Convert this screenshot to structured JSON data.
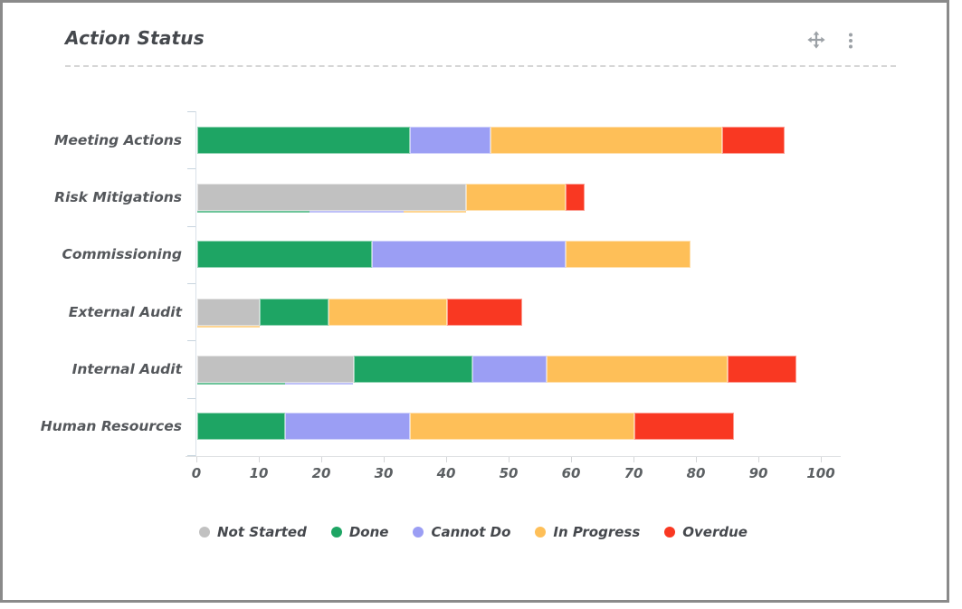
{
  "card": {
    "title": "Action Status",
    "header_icons": [
      {
        "name": "move-icon"
      },
      {
        "name": "kebab-menu-icon"
      }
    ]
  },
  "colors": {
    "not_started": "#C1C1C1",
    "done": "#1EA564",
    "cannot_do": "#9B9EF4",
    "in_progress": "#FEBF58",
    "overdue": "#F93822",
    "icon_gray": "#9CA1A6"
  },
  "chart_data": {
    "type": "bar",
    "orientation": "horizontal",
    "stacked": true,
    "title": "Action Status",
    "categories": [
      "Meeting Actions",
      "Risk Mitigations",
      "Commissioning",
      "External Audit",
      "Internal Audit",
      "Human Resources"
    ],
    "series": [
      {
        "name": "Not Started",
        "key": "not_started",
        "color": "#C1C1C1",
        "values": [
          0,
          43,
          0,
          10,
          25,
          0
        ]
      },
      {
        "name": "Done",
        "key": "done",
        "color": "#1EA564",
        "values": [
          34,
          0,
          28,
          11,
          19,
          14
        ]
      },
      {
        "name": "Cannot Do",
        "key": "cannot_do",
        "color": "#9B9EF4",
        "values": [
          13,
          0,
          31,
          0,
          12,
          20
        ]
      },
      {
        "name": "In Progress",
        "key": "in_progress",
        "color": "#FEBF58",
        "values": [
          37,
          16,
          20,
          19,
          29,
          36
        ]
      },
      {
        "name": "Overdue",
        "key": "overdue",
        "color": "#F93822",
        "values": [
          10,
          3,
          0,
          12,
          11,
          16
        ]
      }
    ],
    "stack_totals": [
      94,
      62,
      79,
      52,
      96,
      86
    ],
    "xlim": [
      0,
      100
    ],
    "x_ticks": [
      0,
      10,
      20,
      30,
      40,
      50,
      60,
      70,
      80,
      90,
      100
    ],
    "grid": false,
    "legend_position": "bottom",
    "legend": [
      "Not Started",
      "Done",
      "Cannot Do",
      "In Progress",
      "Overdue"
    ],
    "underbar_artifacts": [
      [],
      [
        {
          "series": "done",
          "from": 0,
          "to": 18
        },
        {
          "series": "cannot_do",
          "from": 18,
          "to": 33
        },
        {
          "series": "in_progress",
          "from": 33,
          "to": 43
        }
      ],
      [],
      [
        {
          "series": "in_progress",
          "from": 0,
          "to": 10
        }
      ],
      [
        {
          "series": "done",
          "from": 0,
          "to": 14
        },
        {
          "series": "cannot_do",
          "from": 14,
          "to": 25
        }
      ],
      []
    ]
  }
}
